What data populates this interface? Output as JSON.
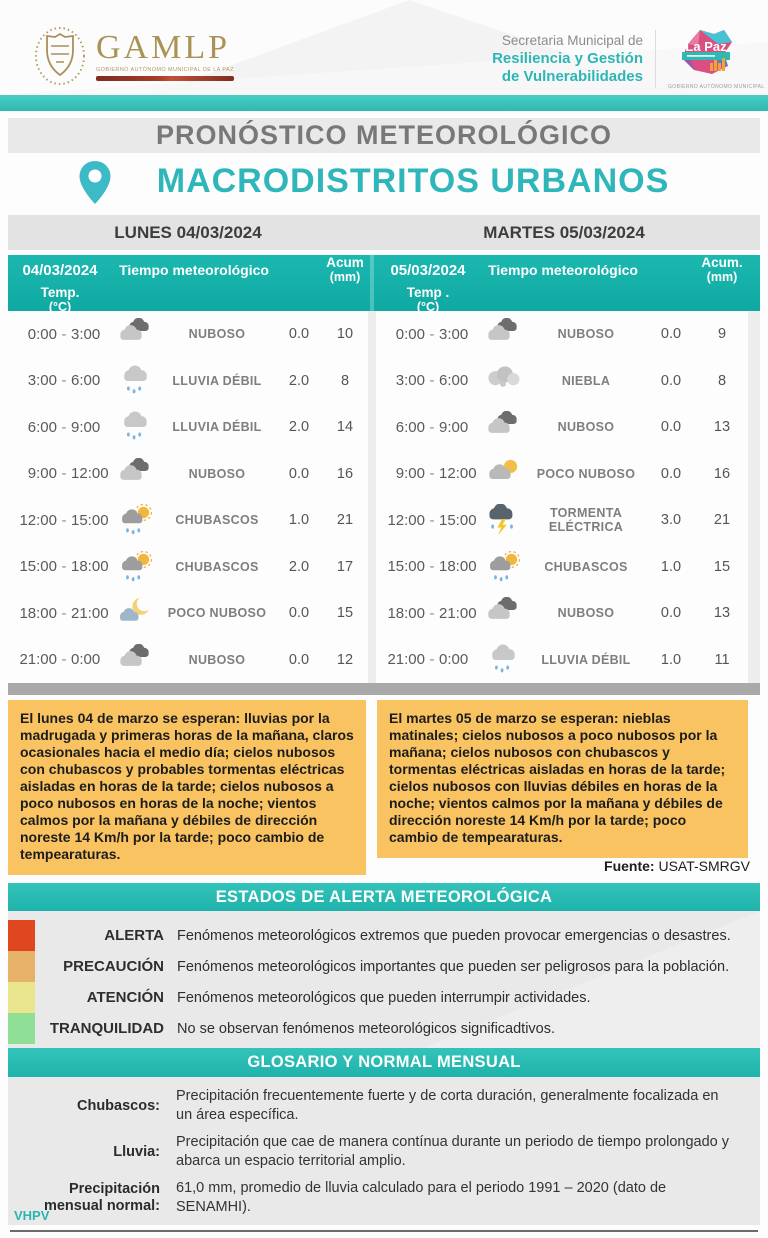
{
  "banner": {
    "gamlp": {
      "acronym": "GAMLP",
      "caption": "GOBIERNO AUTÓNOMO MUNICIPAL DE LA PAZ"
    },
    "secretaria_line1": "Secretaria Municipal de",
    "secretaria_line2": "Resiliencia y Gestión",
    "secretaria_line3": "de Vulnerabilidades",
    "lapaz": {
      "name": "La Paz",
      "caption": "GOBIERNO AUTÓNOMO MUNICIPAL"
    }
  },
  "title": "PRONÓSTICO METEOROLÓGICO",
  "subtitle": "MACRODISTRITOS URBANOS",
  "days": [
    {
      "label": "LUNES 04/03/2024",
      "columns": {
        "date": "04/03/2024",
        "weather": "Tiempo meteorológico",
        "acum": "Acum",
        "acum_unit": "(mm)",
        "temp": "Temp.",
        "temp_unit": "(°C)"
      },
      "rows": [
        {
          "from": "0:00",
          "to": "3:00",
          "icon": "nuboso",
          "condition": "NUBOSO",
          "acum": "0.0",
          "temp": "10"
        },
        {
          "from": "3:00",
          "to": "6:00",
          "icon": "lluvia-debil",
          "condition": "LLUVIA DÉBIL",
          "acum": "2.0",
          "temp": "8"
        },
        {
          "from": "6:00",
          "to": "9:00",
          "icon": "lluvia-debil",
          "condition": "LLUVIA DÉBIL",
          "acum": "2.0",
          "temp": "14"
        },
        {
          "from": "9:00",
          "to": "12:00",
          "icon": "nuboso",
          "condition": "NUBOSO",
          "acum": "0.0",
          "temp": "16"
        },
        {
          "from": "12:00",
          "to": "15:00",
          "icon": "chubascos",
          "condition": "CHUBASCOS",
          "acum": "1.0",
          "temp": "21"
        },
        {
          "from": "15:00",
          "to": "18:00",
          "icon": "chubascos",
          "condition": "CHUBASCOS",
          "acum": "2.0",
          "temp": "17"
        },
        {
          "from": "18:00",
          "to": "21:00",
          "icon": "poco-nuboso-noche",
          "condition": "POCO NUBOSO",
          "acum": "0.0",
          "temp": "15"
        },
        {
          "from": "21:00",
          "to": "0:00",
          "icon": "nuboso",
          "condition": "NUBOSO",
          "acum": "0.0",
          "temp": "12"
        }
      ],
      "summary": "El lunes 04 de marzo se esperan: lluvias por la madrugada y primeras horas de la mañana, claros ocasionales hacia el medio día; cielos nubosos con chubascos y probables tormentas eléctricas aisladas en horas de la tarde; cielos nubosos a poco nubosos en horas de la noche; vientos calmos por la mañana y débiles de dirección noreste 14 Km/h por la tarde; poco cambio de tempearaturas."
    },
    {
      "label": "MARTES 05/03/2024",
      "columns": {
        "date": "05/03/2024",
        "weather": "Tiempo meteorológico",
        "acum": "Acum.",
        "acum_unit": "(mm)",
        "temp": "Temp .",
        "temp_unit": "(°C)"
      },
      "rows": [
        {
          "from": "0:00",
          "to": "3:00",
          "icon": "nuboso",
          "condition": "NUBOSO",
          "acum": "0.0",
          "temp": "9"
        },
        {
          "from": "3:00",
          "to": "6:00",
          "icon": "niebla",
          "condition": "NIEBLA",
          "acum": "0.0",
          "temp": "8"
        },
        {
          "from": "6:00",
          "to": "9:00",
          "icon": "nuboso",
          "condition": "NUBOSO",
          "acum": "0.0",
          "temp": "13"
        },
        {
          "from": "9:00",
          "to": "12:00",
          "icon": "poco-nuboso-dia",
          "condition": "POCO NUBOSO",
          "acum": "0.0",
          "temp": "16"
        },
        {
          "from": "12:00",
          "to": "15:00",
          "icon": "tormenta-electrica",
          "condition": "TORMENTA ELÉCTRICA",
          "acum": "3.0",
          "temp": "21"
        },
        {
          "from": "15:00",
          "to": "18:00",
          "icon": "chubascos",
          "condition": "CHUBASCOS",
          "acum": "1.0",
          "temp": "15"
        },
        {
          "from": "18:00",
          "to": "21:00",
          "icon": "nuboso",
          "condition": "NUBOSO",
          "acum": "0.0",
          "temp": "13"
        },
        {
          "from": "21:00",
          "to": "0:00",
          "icon": "lluvia-debil",
          "condition": "LLUVIA DÉBIL",
          "acum": "1.0",
          "temp": "11"
        }
      ],
      "summary": "El martes 05 de marzo se esperan: nieblas matinales; cielos nubosos a poco nubosos por la mañana; cielos nubosos con chubascos y tormentas eléctricas aisladas en horas de la tarde; cielos nubosos con lluvias débiles en horas de la noche; vientos calmos por la mañana y débiles de dirección noreste 14 Km/h por la tarde; poco cambio de tempearaturas."
    }
  ],
  "source": {
    "label": "Fuente:",
    "value": "USAT-SMRGV"
  },
  "alerts": {
    "title": "ESTADOS DE ALERTA METEOROLÓGICA",
    "items": [
      {
        "label": "ALERTA",
        "color": "#e0461f",
        "description": "Fenómenos meteorológicos extremos que pueden provocar emergencias o desastres."
      },
      {
        "label": "PRECAUCIÓN",
        "color": "#e6b168",
        "description": "Fenómenos meteorológicos importantes que pueden ser peligrosos para la población."
      },
      {
        "label": "ATENCIÓN",
        "color": "#eae690",
        "description": "Fenómenos meteorológicos que pueden interrumpir actividades."
      },
      {
        "label": "TRANQUILIDAD",
        "color": "#8fdf97",
        "description": "No se observan fenómenos meteorológicos significadtivos."
      }
    ]
  },
  "glossary": {
    "title": "GLOSARIO Y NORMAL MENSUAL",
    "items": [
      {
        "term": "Chubascos:",
        "definition": "Precipitación frecuentemente fuerte y de corta duración, generalmente focalizada en un área específica."
      },
      {
        "term": "Lluvia:",
        "definition": "Precipitación que cae de manera contínua durante un periodo de tiempo prolongado y abarca un espacio territorial amplio."
      },
      {
        "term": "Precipitación mensual normal:",
        "definition": "61,0 mm, promedio de lluvia calculado para el periodo 1991 – 2020 (dato de SENAMHI)."
      }
    ]
  },
  "signature": "VHPV",
  "theme": {
    "teal_header": "#14b0a9",
    "teal_banner_bar": "#3cc6bd",
    "teal_accent": "#2fb6ba",
    "orange_box": "#f9c362",
    "gray_band": "#a9a9a9",
    "gray_section": "#e9e9e9"
  }
}
